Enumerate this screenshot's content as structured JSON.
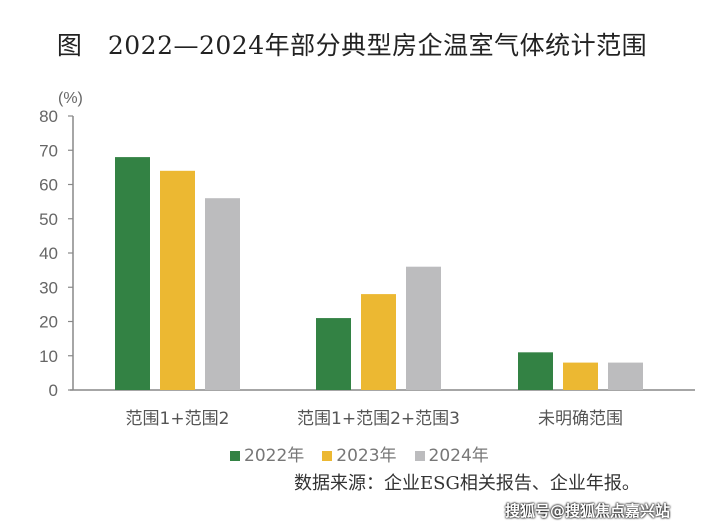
{
  "chart_data": {
    "type": "bar",
    "title": "图　2022—2024年部分典型房企温室气体统计范围",
    "ylabel": "(%)",
    "xlabel": "",
    "ylim": [
      0,
      80
    ],
    "yticks": [
      0,
      10,
      20,
      30,
      40,
      50,
      60,
      70,
      80
    ],
    "categories": [
      "范围1+范围2",
      "范围1+范围2+范围3",
      "未明确范围"
    ],
    "series": [
      {
        "name": "2022年",
        "color": "#338244",
        "values": [
          68,
          21,
          11
        ]
      },
      {
        "name": "2023年",
        "color": "#ecb832",
        "values": [
          64,
          28,
          8
        ]
      },
      {
        "name": "2024年",
        "color": "#bcbcbe",
        "values": [
          56,
          36,
          8
        ]
      }
    ],
    "grid": false,
    "legend_position": "bottom"
  },
  "source": "数据来源：企业ESG相关报告、企业年报。",
  "watermark": "搜狐号@搜狐焦点嘉兴站"
}
